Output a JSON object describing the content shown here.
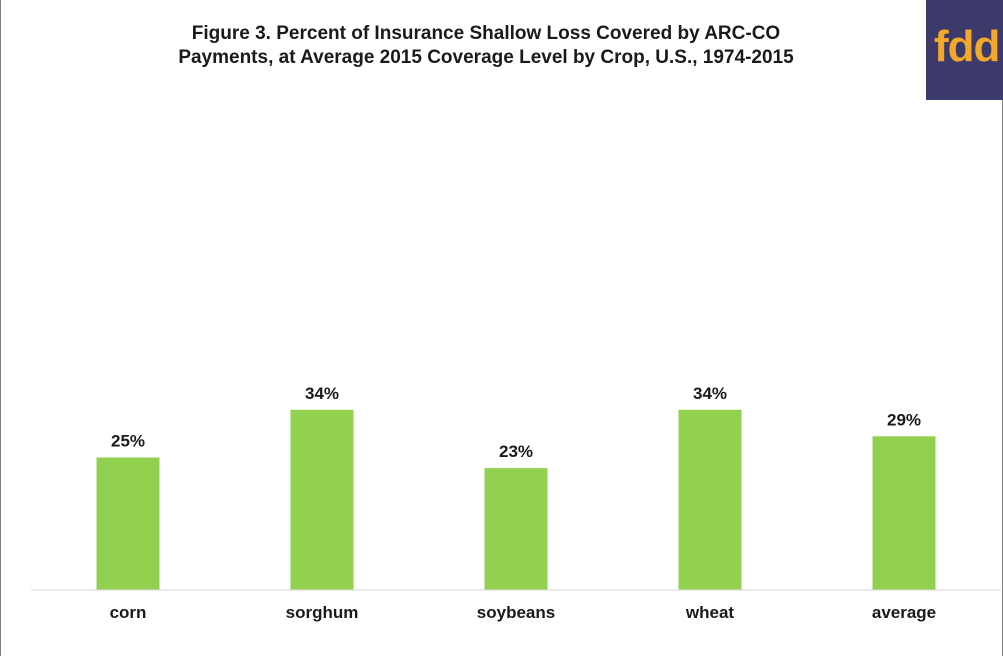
{
  "logo": {
    "text": "fdd",
    "bg_color": "#3b3a6b",
    "text_color": "#f3a72b"
  },
  "chart_data": {
    "type": "bar",
    "title": "Figure 3. Percent of Insurance Shallow Loss Covered by ARC-CO\nPayments, at Average 2015 Coverage Level by Crop, U.S., 1974-2015",
    "categories": [
      "corn",
      "sorghum",
      "soybeans",
      "wheat",
      "average"
    ],
    "values": [
      25,
      34,
      23,
      34,
      29
    ],
    "data_labels": [
      "25%",
      "34%",
      "23%",
      "34%",
      "29%"
    ],
    "xlabel": "",
    "ylabel": "",
    "ylim": [
      0,
      100
    ],
    "grid": false,
    "legend": "none",
    "bar_color": "#92d050"
  }
}
